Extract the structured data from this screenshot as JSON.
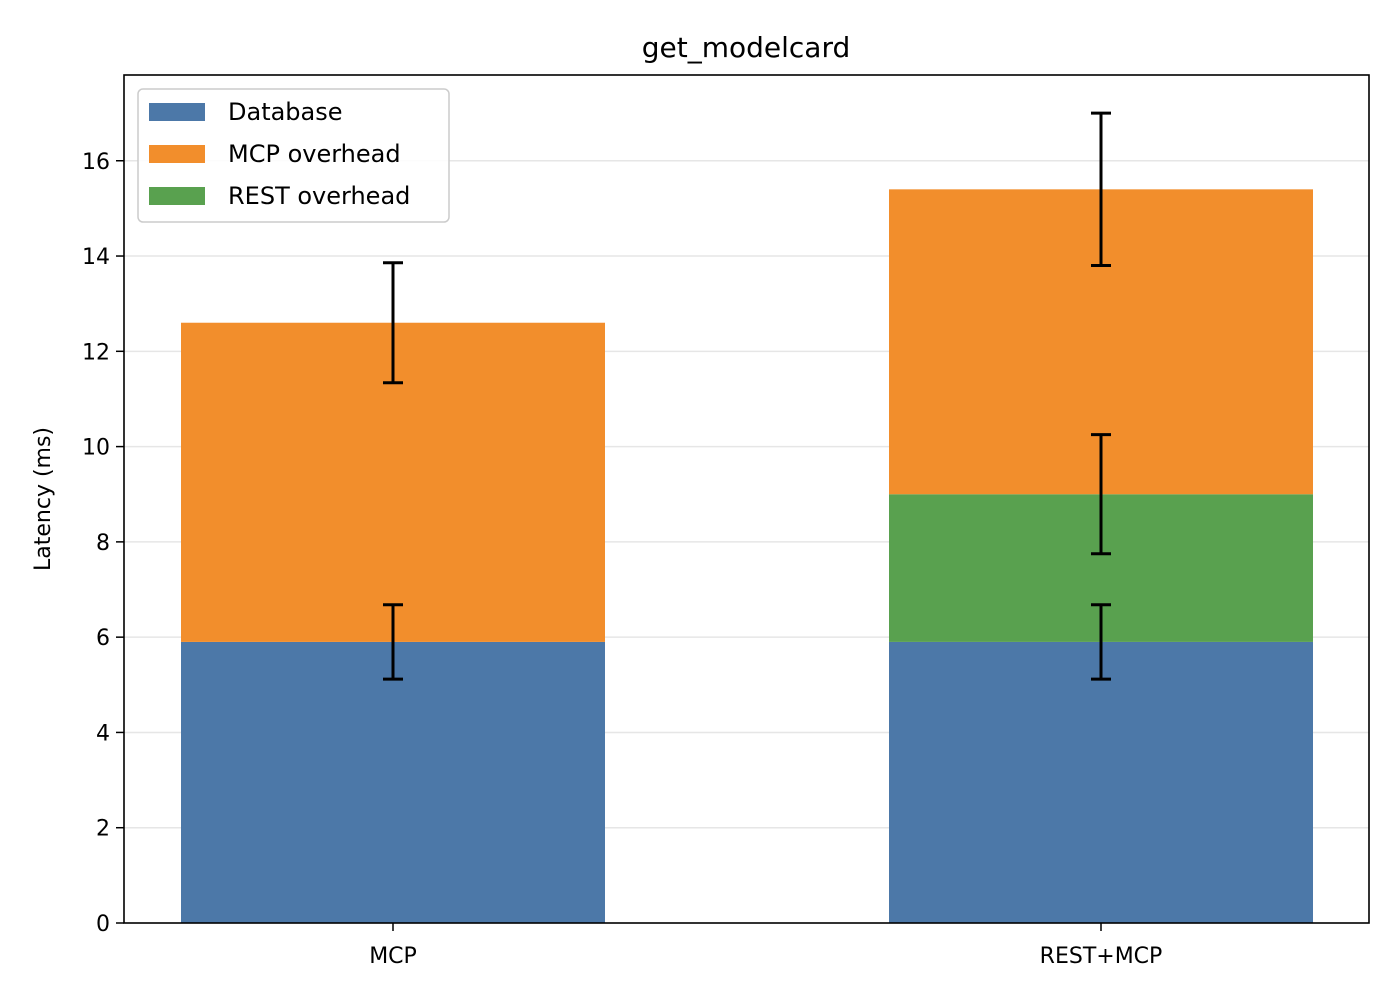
{
  "chart_data": {
    "type": "bar",
    "stacked": true,
    "title": "get_modelcard",
    "xlabel": "",
    "ylabel": "Latency (ms)",
    "ylim": [
      0,
      17.8
    ],
    "yticks": [
      0,
      2,
      4,
      6,
      8,
      10,
      12,
      14,
      16
    ],
    "grid": "horizontal",
    "legend_position": "top-left",
    "categories": [
      "MCP",
      "REST+MCP"
    ],
    "series": [
      {
        "name": "Database",
        "color": "#4c78a8",
        "values": [
          5.9,
          5.9
        ]
      },
      {
        "name": "MCP overhead",
        "color": "#f28e2c",
        "values": [
          6.7,
          6.4
        ]
      },
      {
        "name": "REST overhead",
        "color": "#59a14f",
        "values": [
          0,
          3.1
        ]
      }
    ],
    "error_bars": [
      {
        "category": "MCP",
        "center": 5.9,
        "low": 5.12,
        "high": 6.68
      },
      {
        "category": "MCP",
        "center": 12.6,
        "low": 11.34,
        "high": 13.86
      },
      {
        "category": "REST+MCP",
        "center": 5.9,
        "low": 5.12,
        "high": 6.68
      },
      {
        "category": "REST+MCP",
        "center": 9.0,
        "low": 7.75,
        "high": 10.25
      },
      {
        "category": "REST+MCP",
        "center": 15.4,
        "low": 13.8,
        "high": 17.0
      }
    ]
  }
}
